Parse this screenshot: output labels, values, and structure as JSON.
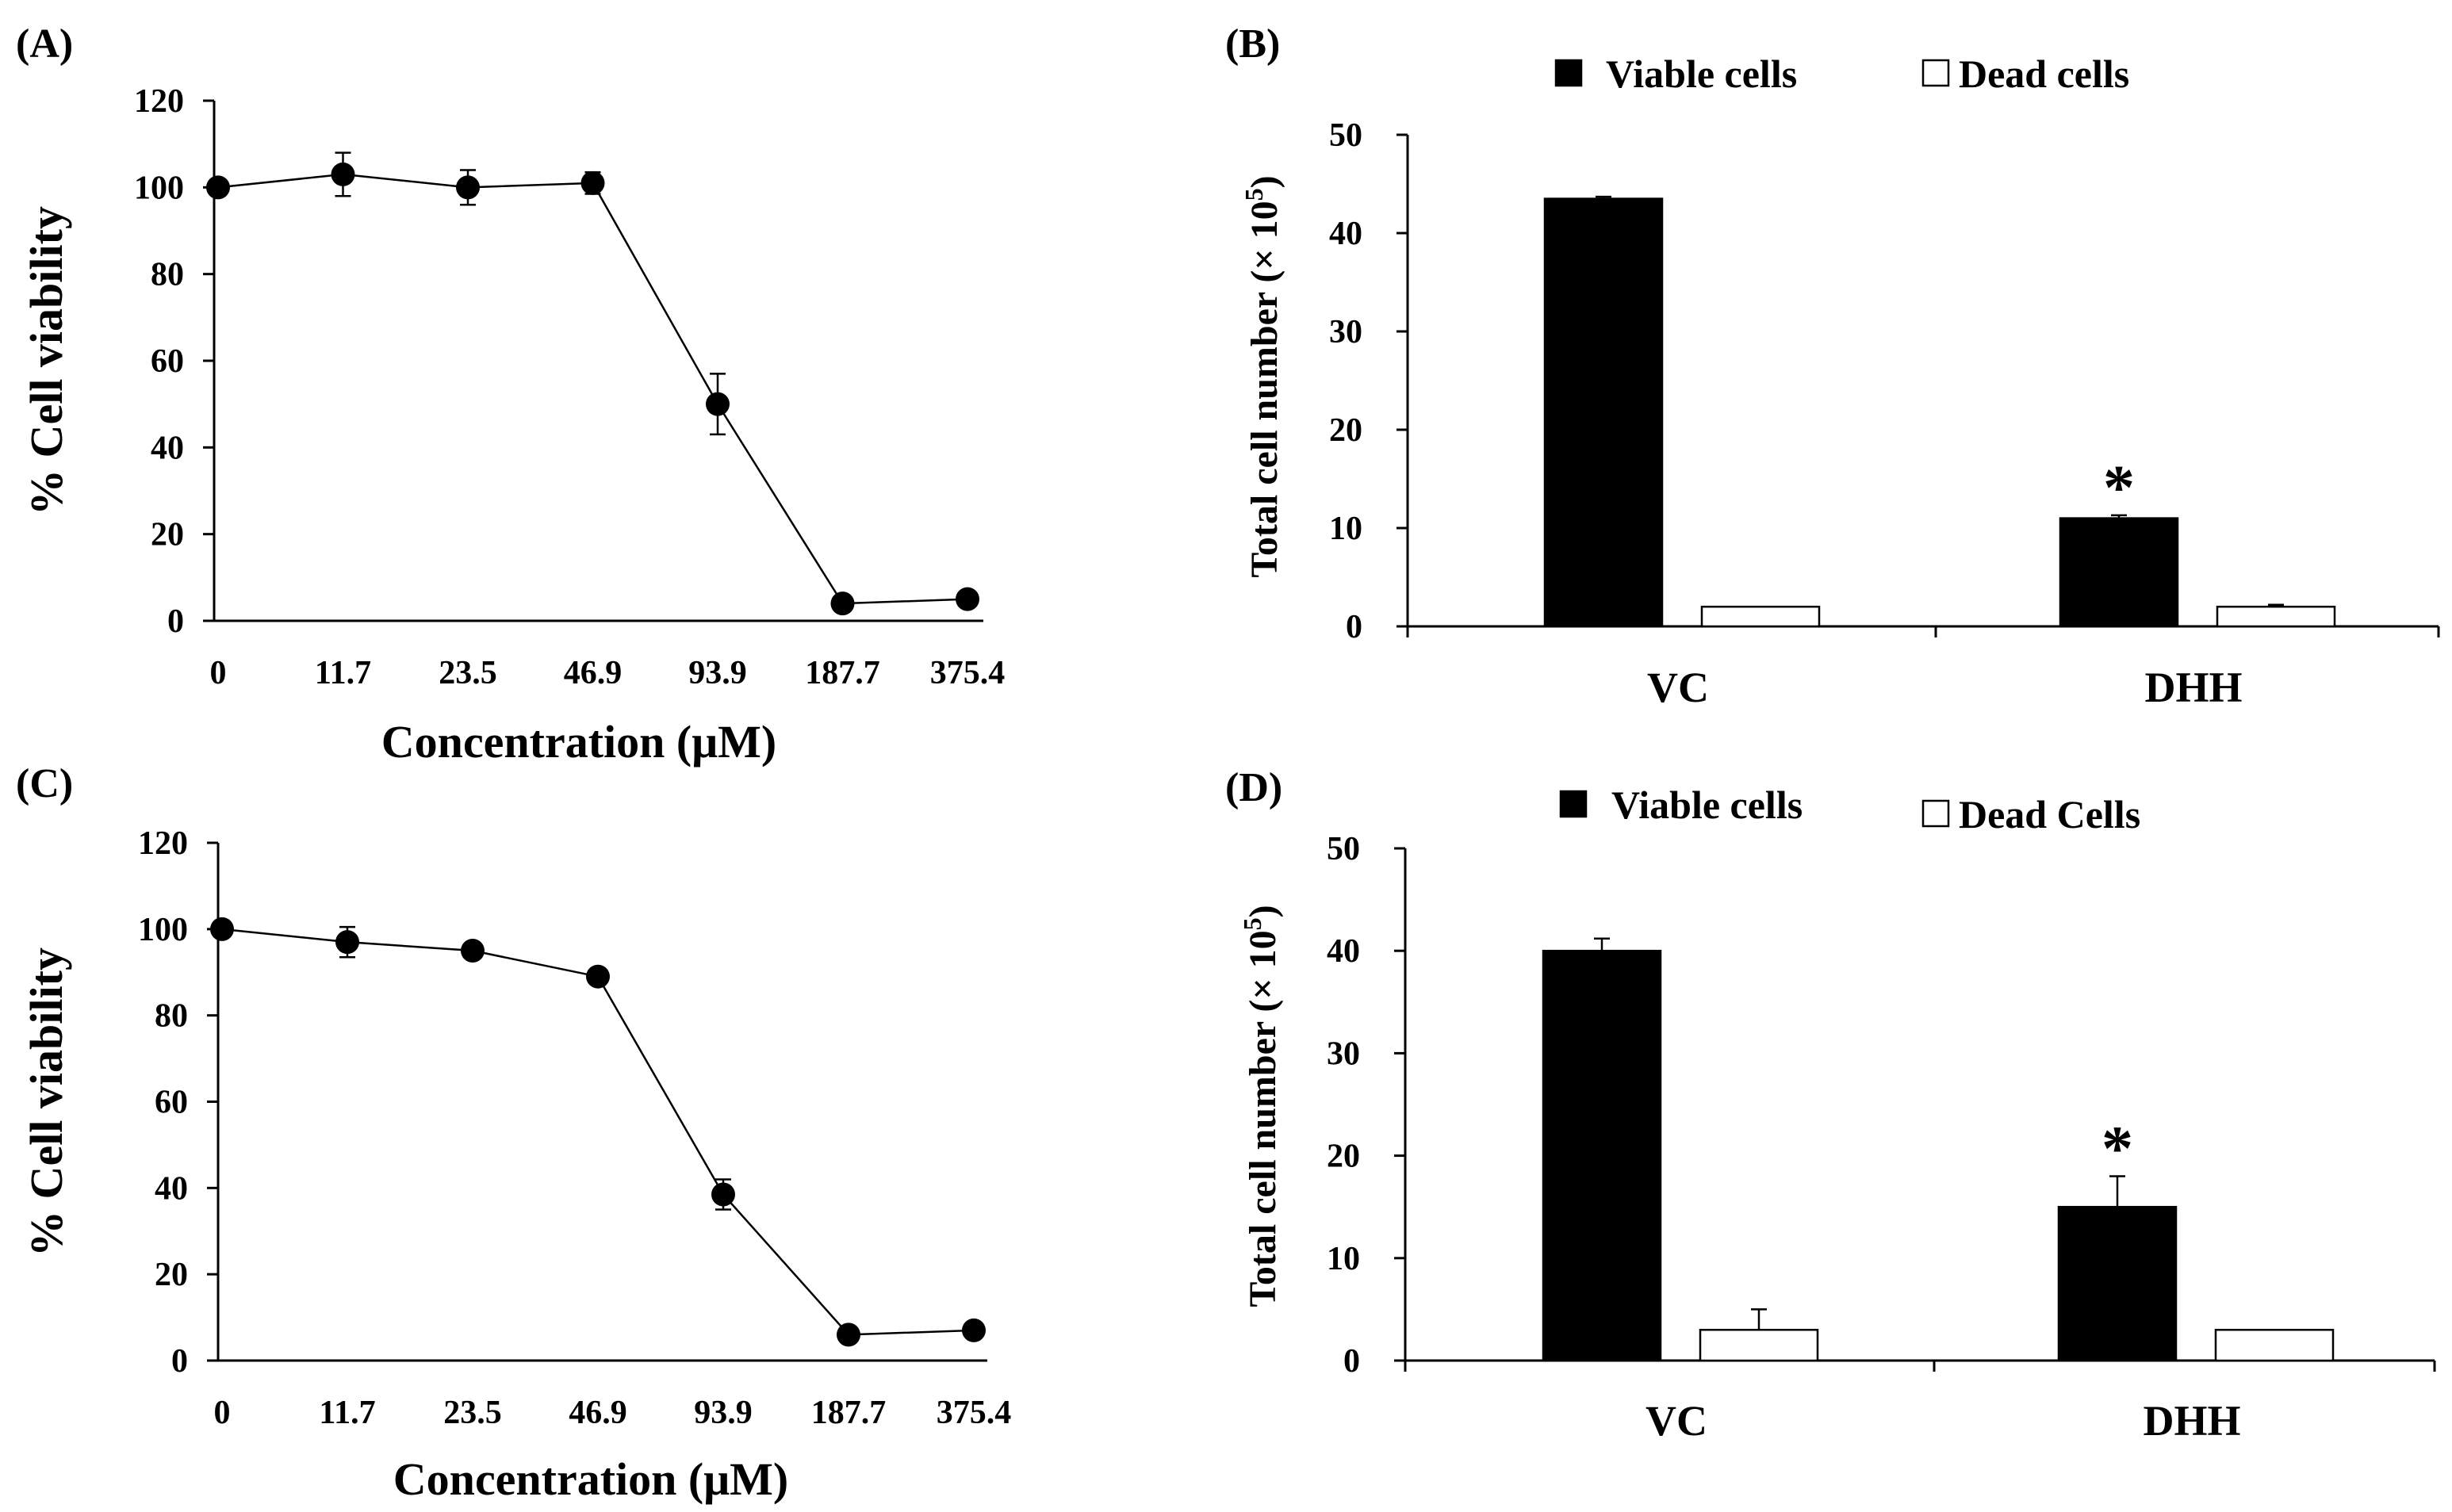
{
  "chart_data": [
    {
      "panel": "(A)",
      "type": "line",
      "title": "",
      "xlabel": "Concentration (μM)",
      "ylabel": "% Cell viability",
      "ylim": [
        0,
        120
      ],
      "yticks": [
        0,
        20,
        40,
        60,
        80,
        100,
        120
      ],
      "categories": [
        "0",
        "11.7",
        "23.5",
        "46.9",
        "93.9",
        "187.7",
        "375.4"
      ],
      "values": [
        100,
        103,
        100,
        101,
        50,
        4,
        5
      ],
      "errors": [
        1,
        5,
        4,
        2.5,
        7,
        1,
        1
      ]
    },
    {
      "panel": "(B)",
      "type": "bar",
      "title": "",
      "xlabel": "",
      "ylabel": "Total cell number (× 10",
      "ylabel_sup": "5",
      "ylabel_close": ")",
      "ylim": [
        0,
        50
      ],
      "yticks": [
        0,
        10,
        20,
        30,
        40,
        50
      ],
      "categories": [
        "VC",
        "DHH"
      ],
      "series": [
        {
          "name": "Viable cells",
          "color": "#000000",
          "values": [
            43.5,
            11
          ],
          "errors": [
            0.2,
            0.3
          ]
        },
        {
          "name": "Dead cells",
          "color": "#ffffff",
          "values": [
            2,
            2
          ],
          "errors": [
            0.1,
            0.2
          ]
        }
      ],
      "annotations": [
        {
          "category": "DHH",
          "series": 0,
          "text": "*"
        }
      ]
    },
    {
      "panel": "(C)",
      "type": "line",
      "title": "",
      "xlabel": "Concentration (μM)",
      "ylabel": "% Cell viability",
      "ylim": [
        0,
        120
      ],
      "yticks": [
        0,
        20,
        40,
        60,
        80,
        100,
        120
      ],
      "categories": [
        "0",
        "11.7",
        "23.5",
        "46.9",
        "93.9",
        "187.7",
        "375.4"
      ],
      "values": [
        100,
        97,
        95,
        89,
        38.5,
        6,
        7
      ],
      "errors": [
        0.5,
        3.5,
        1,
        1,
        3.5,
        0.5,
        0.5
      ]
    },
    {
      "panel": "(D)",
      "type": "bar",
      "title": "",
      "xlabel": "",
      "ylabel": "Total cell number (× 10",
      "ylabel_sup": "5",
      "ylabel_close": ")",
      "ylim": [
        0,
        50
      ],
      "yticks": [
        0,
        10,
        20,
        30,
        40,
        50
      ],
      "categories": [
        "VC",
        "DHH"
      ],
      "series": [
        {
          "name": "Viable cells",
          "color": "#000000",
          "values": [
            40,
            15
          ],
          "errors": [
            1.2,
            3
          ]
        },
        {
          "name": "Dead Cells",
          "color": "#ffffff",
          "values": [
            3,
            3
          ],
          "errors": [
            2,
            0.1
          ]
        }
      ],
      "annotations": [
        {
          "category": "DHH",
          "series": 0,
          "text": "*"
        }
      ]
    }
  ]
}
